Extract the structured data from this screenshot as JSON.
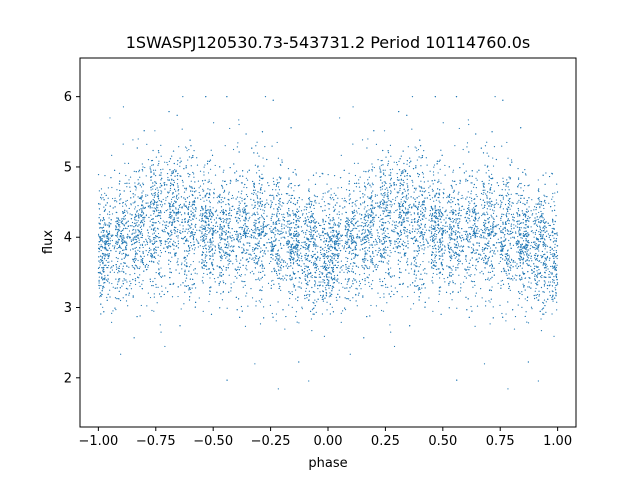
{
  "chart_data": {
    "type": "scatter",
    "title": "1SWASPJ120530.73-543731.2 Period 10114760.0s",
    "xlabel": "phase",
    "ylabel": "flux",
    "xlim": [
      -1.08,
      1.08
    ],
    "ylim": [
      1.3,
      6.55
    ],
    "xticks": [
      -1.0,
      -0.75,
      -0.5,
      -0.25,
      0.0,
      0.25,
      0.5,
      0.75,
      1.0
    ],
    "xtick_labels": [
      "−1.00",
      "−0.75",
      "−0.50",
      "−0.25",
      "0.00",
      "0.25",
      "0.50",
      "0.75",
      "1.00"
    ],
    "yticks": [
      2,
      3,
      4,
      5,
      6
    ],
    "ytick_labels": [
      "2",
      "3",
      "4",
      "5",
      "6"
    ],
    "grid": false,
    "legend": false,
    "marker_color": "#1f77b4",
    "series": [
      {
        "profile_phase": [
          0.0,
          0.1,
          0.2,
          0.3,
          0.4,
          0.5,
          0.6,
          0.7,
          0.8,
          0.9,
          1.0
        ],
        "profile_center_flux": [
          3.8,
          3.95,
          4.15,
          4.3,
          4.15,
          4.05,
          4.05,
          4.2,
          3.95,
          3.85,
          3.8
        ],
        "profile_spread": [
          0.4,
          0.45,
          0.5,
          0.45,
          0.5,
          0.45,
          0.45,
          0.5,
          0.45,
          0.4,
          0.4
        ],
        "flux_range": [
          1.55,
          6.0
        ]
      }
    ]
  }
}
